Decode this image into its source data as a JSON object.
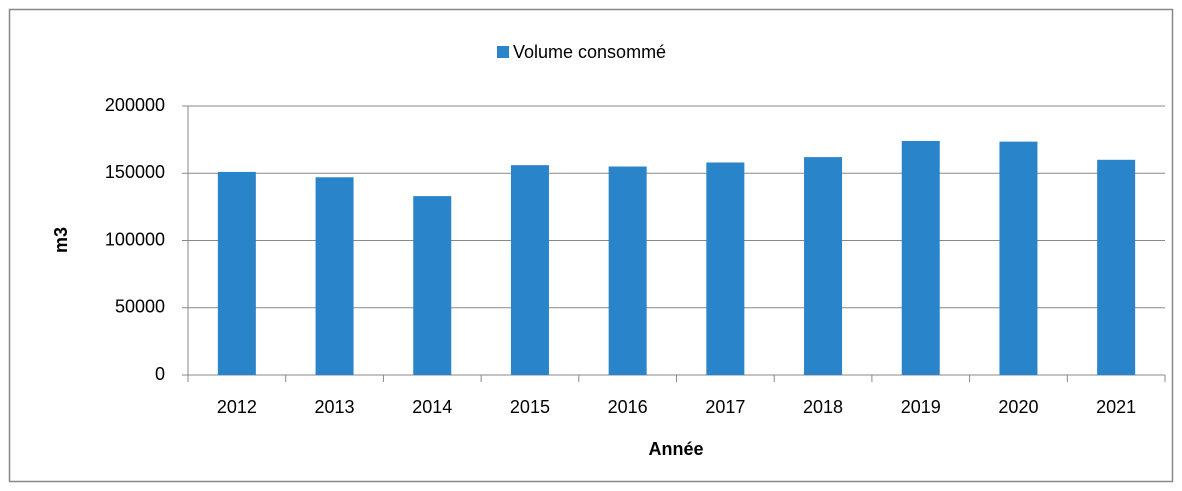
{
  "chart_data": {
    "type": "bar",
    "categories": [
      "2012",
      "2013",
      "2014",
      "2015",
      "2016",
      "2017",
      "2018",
      "2019",
      "2020",
      "2021"
    ],
    "series": [
      {
        "name": "Volume consommé",
        "color": "#2a84c9",
        "values": [
          151000,
          147000,
          133000,
          156000,
          155000,
          158000,
          162000,
          174000,
          173500,
          160000
        ]
      }
    ],
    "x_label": "Année",
    "y_label": "m3",
    "ylim": [
      0,
      200000
    ],
    "yticks": [
      0,
      50000,
      100000,
      150000,
      200000
    ],
    "grid": true,
    "legend": "top"
  }
}
